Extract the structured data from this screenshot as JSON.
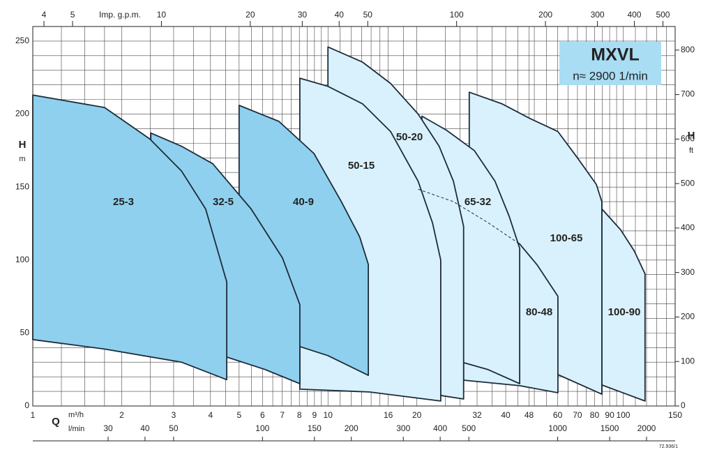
{
  "chart_data": {
    "type": "area",
    "title": "MXVL",
    "subtitle": "n≈ 2900 1/min",
    "x_label": "Q",
    "x_unit": "m³/h",
    "y_label": "H",
    "y_unit": "m",
    "y2_label": "H",
    "y2_unit": "ft",
    "x_scale": "log",
    "xlim": [
      1,
      150
    ],
    "xticks": [
      1,
      2,
      3,
      4,
      5,
      6,
      7,
      8,
      9,
      10,
      16,
      20,
      32,
      40,
      48,
      60,
      70,
      80,
      90,
      100,
      150
    ],
    "xgrid": [
      1.25,
      1.5,
      1.75,
      2.5,
      3.5,
      4.5,
      5.5,
      6.5,
      7.5,
      8.5,
      9.5,
      11,
      12,
      13,
      14,
      15,
      18,
      25,
      28,
      36,
      44,
      50,
      55,
      65,
      75,
      85,
      95,
      110,
      120,
      130,
      140
    ],
    "ylim": [
      0,
      260
    ],
    "yticks": [
      0,
      50,
      100,
      150,
      200,
      250
    ],
    "ygrid": [
      10,
      20,
      30,
      40,
      60,
      70,
      80,
      90,
      110,
      120,
      130,
      140,
      160,
      170,
      180,
      190,
      210,
      220,
      230,
      240
    ],
    "y2lim": [
      0,
      853
    ],
    "y2ticks": [
      0,
      100,
      200,
      300,
      400,
      500,
      600,
      700,
      800
    ],
    "x2_unit": "l/min",
    "x2lim": [
      16.67,
      2500
    ],
    "x2ticks": [
      30,
      40,
      50,
      100,
      150,
      200,
      300,
      400,
      500,
      1000,
      1500,
      2000
    ],
    "x3_label": "Imp. g.p.m.",
    "x3lim": [
      3.666,
      550
    ],
    "x3ticks": [
      4,
      5,
      10,
      20,
      30,
      40,
      50,
      100,
      200,
      300,
      400,
      500
    ],
    "grid": true,
    "series": [
      {
        "name": "25-3",
        "color": "#8fd0ee",
        "x": [
          1,
          1.75,
          2.49,
          3.19,
          3.85,
          4.54,
          4.54,
          3.19,
          1.75,
          1
        ],
        "values": [
          213,
          204.5,
          183,
          161,
          135,
          85,
          18,
          30,
          39,
          45.5
        ]
      },
      {
        "name": "32-5",
        "color": "#8fd0ee",
        "x": [
          2.51,
          2.51,
          3.19,
          4.07,
          5.49,
          7.01,
          8.03,
          8.03,
          6.12,
          4.54,
          3.19
        ],
        "values": [
          38,
          187,
          178,
          166,
          135,
          101.5,
          69.4,
          15.3,
          25,
          33.5,
          38
        ]
      },
      {
        "name": "40-9",
        "color": "#8fd0ee",
        "x": [
          5.0,
          5.0,
          6.82,
          8.96,
          11.1,
          12.8,
          13.7,
          13.7,
          10.0,
          8.03,
          5.0
        ],
        "values": [
          45,
          206,
          195,
          173,
          140,
          116,
          97,
          21,
          34.5,
          40.7,
          45
        ]
      },
      {
        "name": "50-15",
        "color": "#d9f1fc",
        "x": [
          8.03,
          8.03,
          10.0,
          13.1,
          16.3,
          20.2,
          22.6,
          24.1,
          24.1,
          13.8,
          8.03
        ],
        "values": [
          11.5,
          224.6,
          219,
          207,
          188,
          154,
          125.5,
          100,
          3.4,
          9.6,
          11.5
        ]
      },
      {
        "name": "50-20",
        "color": "#d9f1fc",
        "x": [
          10.0,
          10.0,
          13.1,
          16.3,
          20.2,
          23.8,
          26.6,
          28.8,
          28.8,
          16.3,
          10.0
        ],
        "values": [
          13.9,
          246,
          235.6,
          221,
          200,
          178,
          154,
          123,
          4.8,
          12.5,
          13.9
        ]
      },
      {
        "name": "65-32",
        "color": "#d9f1fc",
        "x": [
          20.8,
          20.8,
          25.2,
          31.3,
          36.8,
          41.1,
          44.6,
          44.6,
          34.9,
          28.8,
          20.8
        ],
        "values": [
          35,
          198.6,
          189,
          175,
          154,
          130,
          108,
          15.3,
          24.9,
          29.7,
          35
        ],
        "dashed_x": [
          20.2,
          26.6,
          34.9,
          44.6
        ],
        "dashed_values": [
          148.5,
          140,
          125.5,
          111
        ]
      },
      {
        "name": "80-48",
        "color": "#d9f1fc",
        "x": [
          28.8,
          28.8,
          34.9,
          44.6,
          51.1,
          60.1,
          60.1,
          44.6,
          28.8
        ],
        "values": [
          17.7,
          137.5,
          125.5,
          111,
          96.7,
          75.2,
          9.1,
          13.9,
          17.7
        ]
      },
      {
        "name": "100-65",
        "color": "#d9f1fc",
        "x": [
          30.1,
          30.1,
          38.9,
          48.3,
          60.1,
          70.8,
          81.1,
          84.7,
          84.7,
          60.1,
          30.1
        ],
        "values": [
          25,
          215,
          207,
          197,
          188,
          168.6,
          151.8,
          140,
          8.1,
          21.5,
          25
        ]
      },
      {
        "name": "100-90",
        "color": "#d9f1fc",
        "x": [
          84.7,
          84.7,
          98.1,
          109,
          118.6,
          118.6,
          84.7
        ],
        "values": [
          14.4,
          135,
          120.7,
          106.3,
          90.5,
          3.4,
          14.4
        ]
      }
    ],
    "note": "72.936/1"
  }
}
